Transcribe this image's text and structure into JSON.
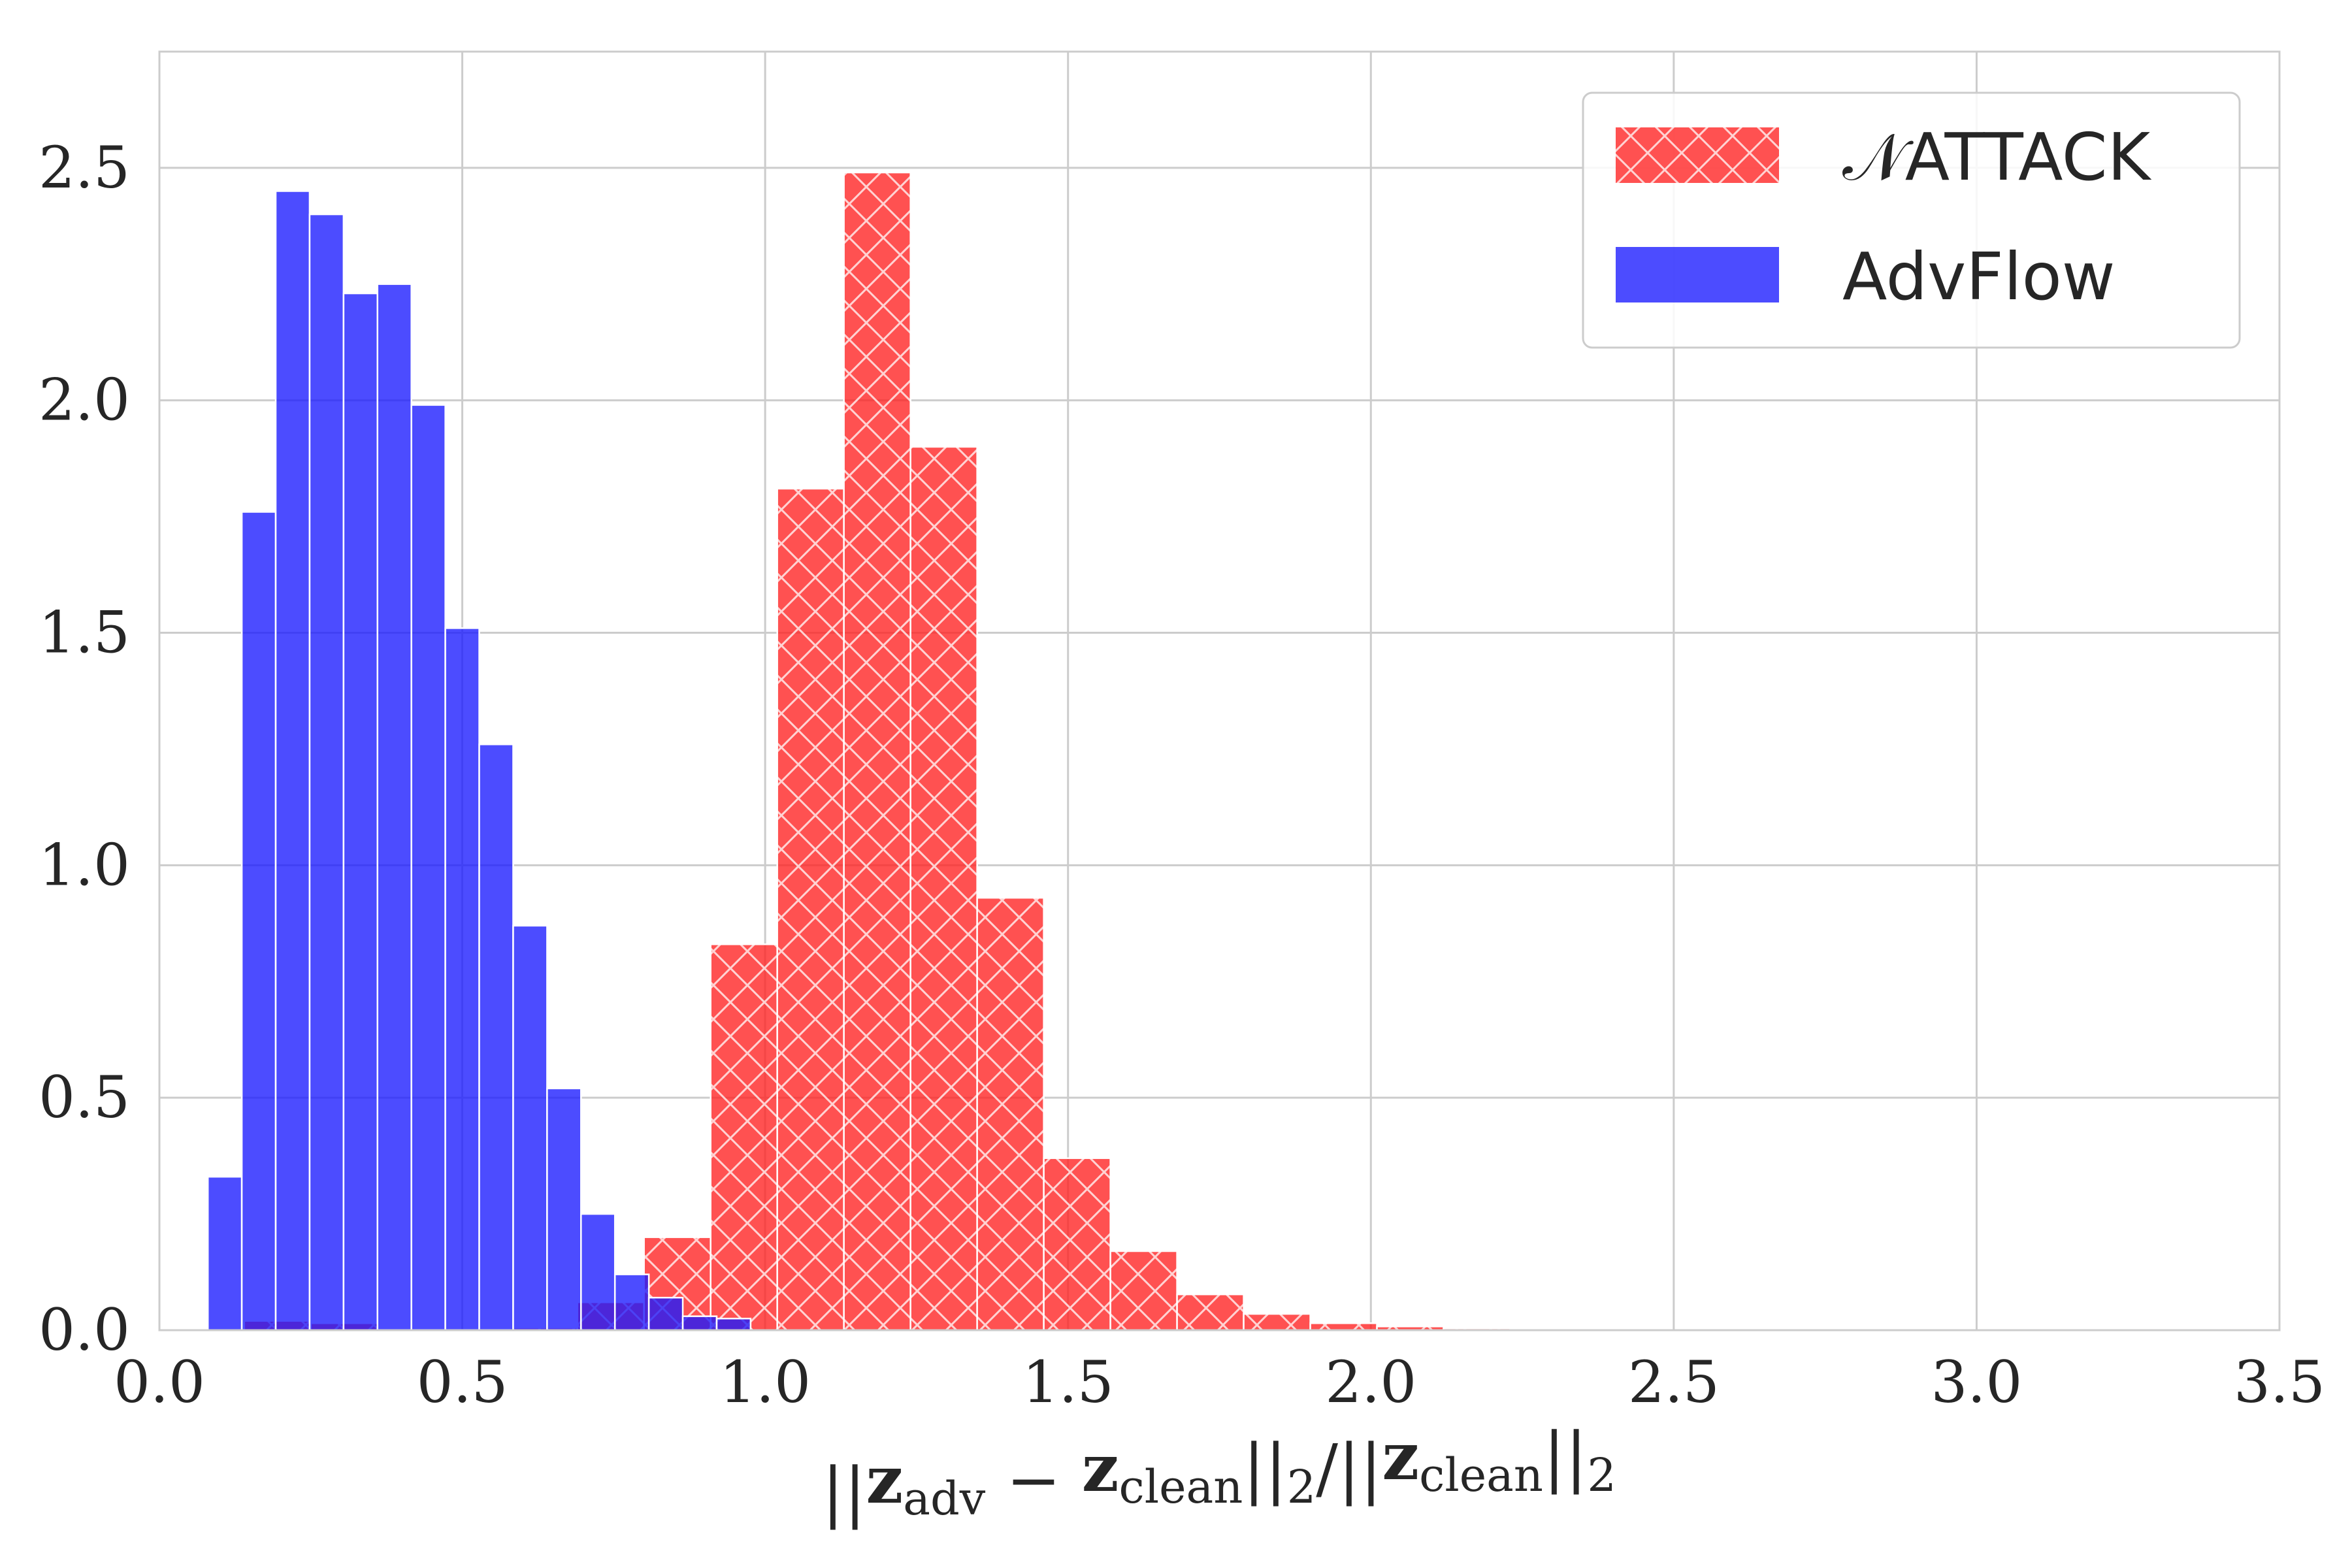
{
  "chart_data": {
    "type": "bar",
    "subtype": "histogram",
    "title": "",
    "ylabel": "",
    "xlabel": {
      "parts": [
        {
          "text": "||",
          "style": "normal"
        },
        {
          "text": "z",
          "style": "bold"
        },
        {
          "text": "adv",
          "style": "sub"
        },
        {
          "text": " − ",
          "style": "normal"
        },
        {
          "text": "z",
          "style": "bold"
        },
        {
          "text": "clean",
          "style": "sub"
        },
        {
          "text": "||",
          "style": "normal"
        },
        {
          "text": "2",
          "style": "sub"
        },
        {
          "text": "/||",
          "style": "normal"
        },
        {
          "text": "z",
          "style": "bold"
        },
        {
          "text": "clean",
          "style": "sub"
        },
        {
          "text": "||",
          "style": "normal"
        },
        {
          "text": "2",
          "style": "sub"
        }
      ]
    },
    "xlim": [
      0.0,
      3.5
    ],
    "ylim": [
      0.0,
      2.75
    ],
    "xticks": [
      0.0,
      0.5,
      1.0,
      1.5,
      2.0,
      2.5,
      3.0,
      3.5
    ],
    "xtick_labels": [
      "0.0",
      "0.5",
      "1.0",
      "1.5",
      "2.0",
      "2.5",
      "3.0",
      "3.5"
    ],
    "yticks": [
      0.0,
      0.5,
      1.0,
      1.5,
      2.0,
      2.5
    ],
    "ytick_labels": [
      "0.0",
      "0.5",
      "1.0",
      "1.5",
      "2.0",
      "2.5"
    ],
    "grid": true,
    "legend_position": "top-right",
    "series": [
      {
        "name": "𝒩ATTACK",
        "color": "#ff2020",
        "hatch": "cross",
        "bins": [
          {
            "x0": 0.14,
            "x1": 0.25,
            "y": 0.02
          },
          {
            "x0": 0.25,
            "x1": 0.36,
            "y": 0.015
          },
          {
            "x0": 0.58,
            "x1": 0.69,
            "y": 0.005
          },
          {
            "x0": 0.69,
            "x1": 0.8,
            "y": 0.06
          },
          {
            "x0": 0.8,
            "x1": 0.91,
            "y": 0.2
          },
          {
            "x0": 0.91,
            "x1": 1.02,
            "y": 0.83
          },
          {
            "x0": 1.02,
            "x1": 1.13,
            "y": 1.81
          },
          {
            "x0": 1.13,
            "x1": 1.24,
            "y": 2.49
          },
          {
            "x0": 1.24,
            "x1": 1.35,
            "y": 1.9
          },
          {
            "x0": 1.35,
            "x1": 1.46,
            "y": 0.93
          },
          {
            "x0": 1.46,
            "x1": 1.57,
            "y": 0.37
          },
          {
            "x0": 1.57,
            "x1": 1.68,
            "y": 0.17
          },
          {
            "x0": 1.68,
            "x1": 1.79,
            "y": 0.077
          },
          {
            "x0": 1.79,
            "x1": 1.9,
            "y": 0.035
          },
          {
            "x0": 1.9,
            "x1": 2.01,
            "y": 0.015
          },
          {
            "x0": 2.01,
            "x1": 2.12,
            "y": 0.008
          },
          {
            "x0": 2.12,
            "x1": 2.23,
            "y": 0.004
          },
          {
            "x0": 2.23,
            "x1": 2.34,
            "y": 0.002
          }
        ]
      },
      {
        "name": "AdvFlow",
        "color": "#1a1aff",
        "hatch": "none",
        "bins": [
          {
            "x0": 0.08,
            "x1": 0.136,
            "y": 0.33
          },
          {
            "x0": 0.136,
            "x1": 0.192,
            "y": 1.76
          },
          {
            "x0": 0.192,
            "x1": 0.248,
            "y": 2.45
          },
          {
            "x0": 0.248,
            "x1": 0.304,
            "y": 2.4
          },
          {
            "x0": 0.304,
            "x1": 0.36,
            "y": 2.23
          },
          {
            "x0": 0.36,
            "x1": 0.416,
            "y": 2.25
          },
          {
            "x0": 0.416,
            "x1": 0.472,
            "y": 1.99
          },
          {
            "x0": 0.472,
            "x1": 0.528,
            "y": 1.51
          },
          {
            "x0": 0.528,
            "x1": 0.584,
            "y": 1.26
          },
          {
            "x0": 0.584,
            "x1": 0.64,
            "y": 0.87
          },
          {
            "x0": 0.64,
            "x1": 0.696,
            "y": 0.52
          },
          {
            "x0": 0.696,
            "x1": 0.752,
            "y": 0.25
          },
          {
            "x0": 0.752,
            "x1": 0.808,
            "y": 0.12
          },
          {
            "x0": 0.808,
            "x1": 0.864,
            "y": 0.07
          },
          {
            "x0": 0.864,
            "x1": 0.92,
            "y": 0.03
          },
          {
            "x0": 0.92,
            "x1": 0.976,
            "y": 0.025
          }
        ]
      }
    ]
  }
}
